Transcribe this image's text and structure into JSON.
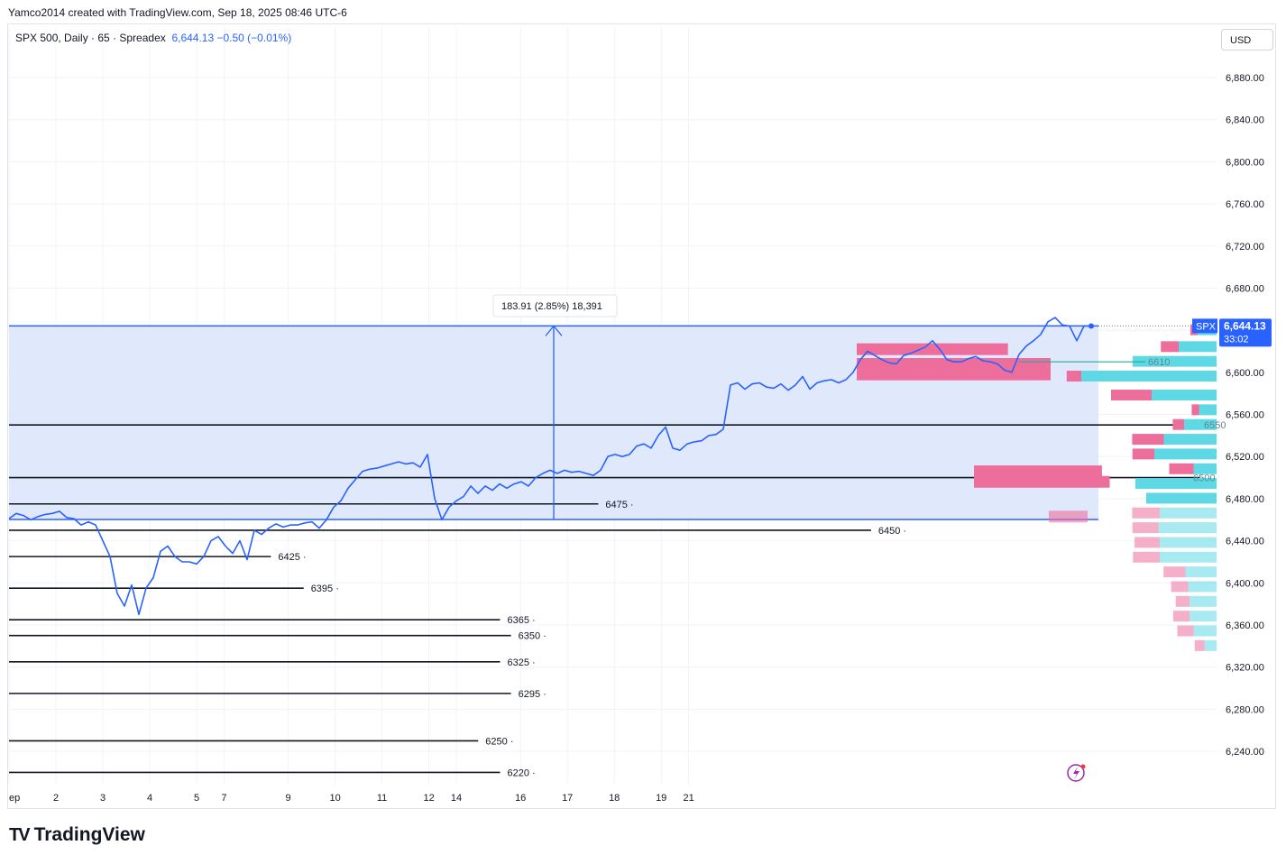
{
  "header": {
    "credit": "Yamco2014 created with TradingView.com, Sep 18, 2025 08:46 UTC-6",
    "symbol_info": "SPX 500, Daily · 65 · Spreadex",
    "price_info": "6,644.13  −0.50 (−0.01%)",
    "currency": "USD"
  },
  "price_tag": {
    "symbol": "SPX",
    "price": "6,644.13",
    "timer": "33:02",
    "color": "#2962ff"
  },
  "measure": {
    "label": "183.91 (2.85%) 18,391",
    "from": 6460.2,
    "to": 6644.1
  },
  "footer": {
    "logo_text": "TradingView"
  },
  "colors": {
    "line": "#2962ff",
    "box_fill": "#dbe4fb",
    "vp_up": "#5fd8e5",
    "vp_down": "#ee6e9b",
    "poc": "#22ab94"
  },
  "chart_data": {
    "type": "line",
    "title": "",
    "ylabel": "",
    "xlabel": "",
    "ylim": [
      6220,
      6900
    ],
    "yticks": [
      "6,880.00",
      "6,840.00",
      "6,800.00",
      "6,760.00",
      "6,720.00",
      "6,680.00",
      "6,640.00",
      "6,600.00",
      "6,560.00",
      "6,520.00",
      "6,480.00",
      "6,440.00",
      "6,400.00",
      "6,360.00",
      "6,320.00",
      "6,280.00",
      "6,240.00"
    ],
    "xticks": [
      {
        "label": "ep",
        "i": 0
      },
      {
        "label": "2",
        "i": 6.5
      },
      {
        "label": "3",
        "i": 13
      },
      {
        "label": "4",
        "i": 19.5
      },
      {
        "label": "5",
        "i": 26
      },
      {
        "label": "7",
        "i": 29.8
      },
      {
        "label": "9",
        "i": 38.7
      },
      {
        "label": "10",
        "i": 45.2
      },
      {
        "label": "11",
        "i": 51.7
      },
      {
        "label": "12",
        "i": 58.2
      },
      {
        "label": "14",
        "i": 62
      },
      {
        "label": "16",
        "i": 70.9
      },
      {
        "label": "17",
        "i": 77.4
      },
      {
        "label": "18",
        "i": 83.9
      },
      {
        "label": "19",
        "i": 90.4
      },
      {
        "label": "21",
        "i": 94.2
      }
    ],
    "series": [
      {
        "values": [
          6461,
          6466,
          6464,
          6460,
          6463,
          6465,
          6466,
          6468,
          6462,
          6461,
          6455,
          6458,
          6455,
          6440,
          6425,
          6390,
          6378,
          6398,
          6370,
          6395,
          6405,
          6430,
          6435,
          6425,
          6420,
          6420,
          6418,
          6425,
          6440,
          6444,
          6435,
          6428,
          6440,
          6422,
          6450,
          6446,
          6452,
          6456,
          6453,
          6455,
          6455,
          6457,
          6458,
          6452,
          6460,
          6472,
          6478,
          6490,
          6498,
          6506,
          6508,
          6509,
          6511,
          6513,
          6515,
          6513,
          6514,
          6510,
          6522,
          6480,
          6460,
          6472,
          6478,
          6482,
          6492,
          6485,
          6492,
          6488,
          6494,
          6490,
          6494,
          6496,
          6492,
          6500,
          6504,
          6507,
          6504,
          6507,
          6505,
          6506,
          6504,
          6502,
          6507,
          6520,
          6522,
          6520,
          6522,
          6530,
          6532,
          6528,
          6540,
          6548,
          6528,
          6526,
          6532,
          6534,
          6535,
          6540,
          6541,
          6546,
          6588,
          6590,
          6584,
          6589,
          6590,
          6586,
          6585,
          6589,
          6583,
          6588,
          6596,
          6584,
          6590,
          6592,
          6593,
          6590,
          6593,
          6600,
          6612,
          6620,
          6616,
          6612,
          6609,
          6608,
          6616,
          6618,
          6621,
          6624,
          6630,
          6622,
          6612,
          6610,
          6610,
          6613,
          6615,
          6611,
          6610,
          6608,
          6602,
          6600,
          6617,
          6625,
          6630,
          6636,
          6648,
          6652,
          6645,
          6644,
          6630,
          6644,
          6644
        ]
      }
    ],
    "horizontal_levels": [
      {
        "label": "6475",
        "value": 6475,
        "end": 0.54
      },
      {
        "label": "6450",
        "value": 6450,
        "end": 0.79
      },
      {
        "label": "6425",
        "value": 6425,
        "end": 0.24
      },
      {
        "label": "6395",
        "value": 6395,
        "end": 0.27
      },
      {
        "label": "6365",
        "value": 6365,
        "end": 0.45
      },
      {
        "label": "6350",
        "value": 6350,
        "end": 0.46
      },
      {
        "label": "6325",
        "value": 6325,
        "end": 0.45
      },
      {
        "label": "6295",
        "value": 6295,
        "end": 0.46
      },
      {
        "label": "6250",
        "value": 6250,
        "end": 0.43
      },
      {
        "label": "6220",
        "value": 6220,
        "end": 0.45
      },
      {
        "label": "",
        "value": 6500,
        "end": 1.0
      },
      {
        "label": "",
        "value": 6550,
        "end": 1.0
      }
    ],
    "box": {
      "top": 6644.1,
      "bottom": 6460.2
    },
    "volume_profile": {
      "poc_label": "6610",
      "right_labels": [
        "6500",
        "6550"
      ],
      "rows": [
        {
          "price": 6640,
          "up": 0.14,
          "down": 0.09
        },
        {
          "price": 6624,
          "up": 0.28,
          "down": 0.22
        },
        {
          "price": 6610,
          "up": 0.62,
          "down": 0.0
        },
        {
          "price": 6596,
          "up": 1.0,
          "down": 0.18
        },
        {
          "price": 6578,
          "up": 0.48,
          "down": 0.5
        },
        {
          "price": 6564,
          "up": 0.13,
          "down": 0.09
        },
        {
          "price": 6550,
          "up": 0.24,
          "down": 0.14
        },
        {
          "price": 6536,
          "up": 0.39,
          "down": 0.39
        },
        {
          "price": 6522,
          "up": 0.46,
          "down": 0.27
        },
        {
          "price": 6508,
          "up": 0.17,
          "down": 0.3
        },
        {
          "price": 6494,
          "up": 0.6,
          "down": 0.0
        },
        {
          "price": 6480,
          "up": 0.52,
          "down": 0.0
        },
        {
          "price": 6466,
          "up": 0.42,
          "down": 0.34
        },
        {
          "price": 6452,
          "up": 0.43,
          "down": 0.32
        },
        {
          "price": 6438,
          "up": 0.42,
          "down": 0.31
        },
        {
          "price": 6424,
          "up": 0.42,
          "down": 0.33
        },
        {
          "price": 6410,
          "up": 0.23,
          "down": 0.27
        },
        {
          "price": 6396,
          "up": 0.21,
          "down": 0.21
        },
        {
          "price": 6382,
          "up": 0.2,
          "down": 0.17
        },
        {
          "price": 6368,
          "up": 0.2,
          "down": 0.2
        },
        {
          "price": 6354,
          "up": 0.17,
          "down": 0.2
        },
        {
          "price": 6340,
          "up": 0.09,
          "down": 0.12
        }
      ],
      "left_blocks": [
        {
          "price": 6622,
          "w": 0.78
        },
        {
          "price": 6608,
          "w": 1.0
        },
        {
          "price": 6598,
          "w": 1.0
        },
        {
          "price": 6506,
          "w": 0.66
        },
        {
          "price": 6496,
          "w": 0.7
        },
        {
          "price": 6463,
          "w": 0.2
        }
      ]
    }
  }
}
